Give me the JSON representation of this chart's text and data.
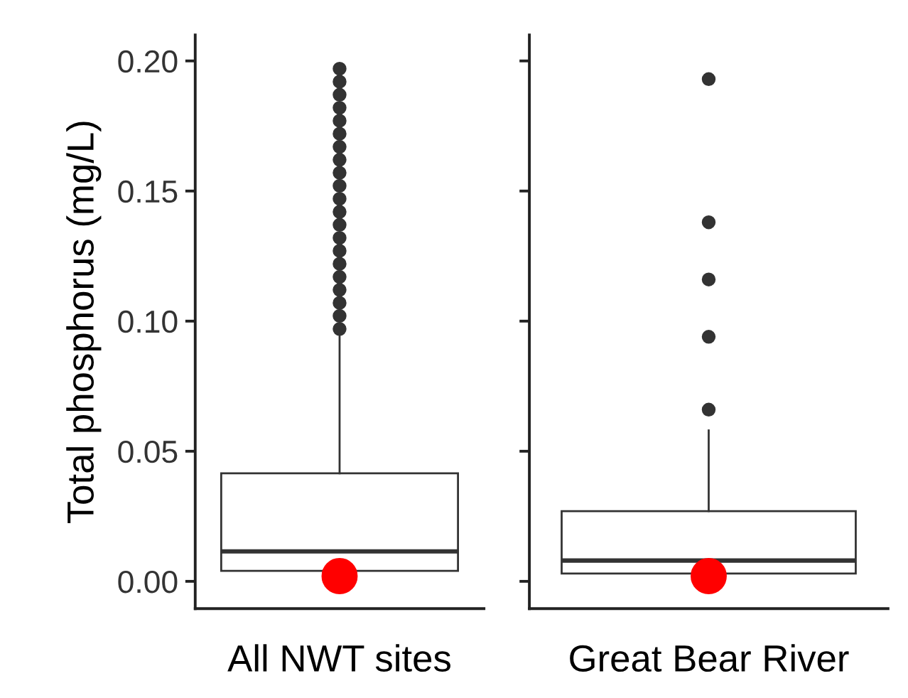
{
  "chart_data": {
    "type": "box",
    "ylabel": "Total phosphorus (mg/L)",
    "categories": [
      "All NWT sites",
      "Great Bear River"
    ],
    "ylim": [
      -0.0105,
      0.21
    ],
    "yticks": [
      {
        "value": 0,
        "label": "0.00"
      },
      {
        "value": 0.05,
        "label": "0.05"
      },
      {
        "value": 0.1,
        "label": "0.10"
      },
      {
        "value": 0.15,
        "label": "0.15"
      },
      {
        "value": 0.2,
        "label": "0.20"
      }
    ],
    "grid": false,
    "legend": false,
    "boxes": [
      {
        "low": 0.004,
        "q1": 0.004,
        "median": 0.0115,
        "q3": 0.0415,
        "high": 0.096,
        "outliers": [
          0.097,
          0.102,
          0.107,
          0.112,
          0.117,
          0.122,
          0.127,
          0.132,
          0.137,
          0.142,
          0.147,
          0.152,
          0.157,
          0.162,
          0.167,
          0.172,
          0.177,
          0.182,
          0.187,
          0.192,
          0.197
        ]
      },
      {
        "low": 0.003,
        "q1": 0.003,
        "median": 0.008,
        "q3": 0.027,
        "high": 0.058,
        "outliers": [
          0.066,
          0.094,
          0.116,
          0.138,
          0.193
        ]
      }
    ],
    "series": [
      {
        "type": "scatter",
        "color": "#ff0000",
        "x": [
          "All NWT sites",
          "Great Bear River"
        ],
        "values": [
          0.002,
          0.002
        ]
      }
    ]
  }
}
